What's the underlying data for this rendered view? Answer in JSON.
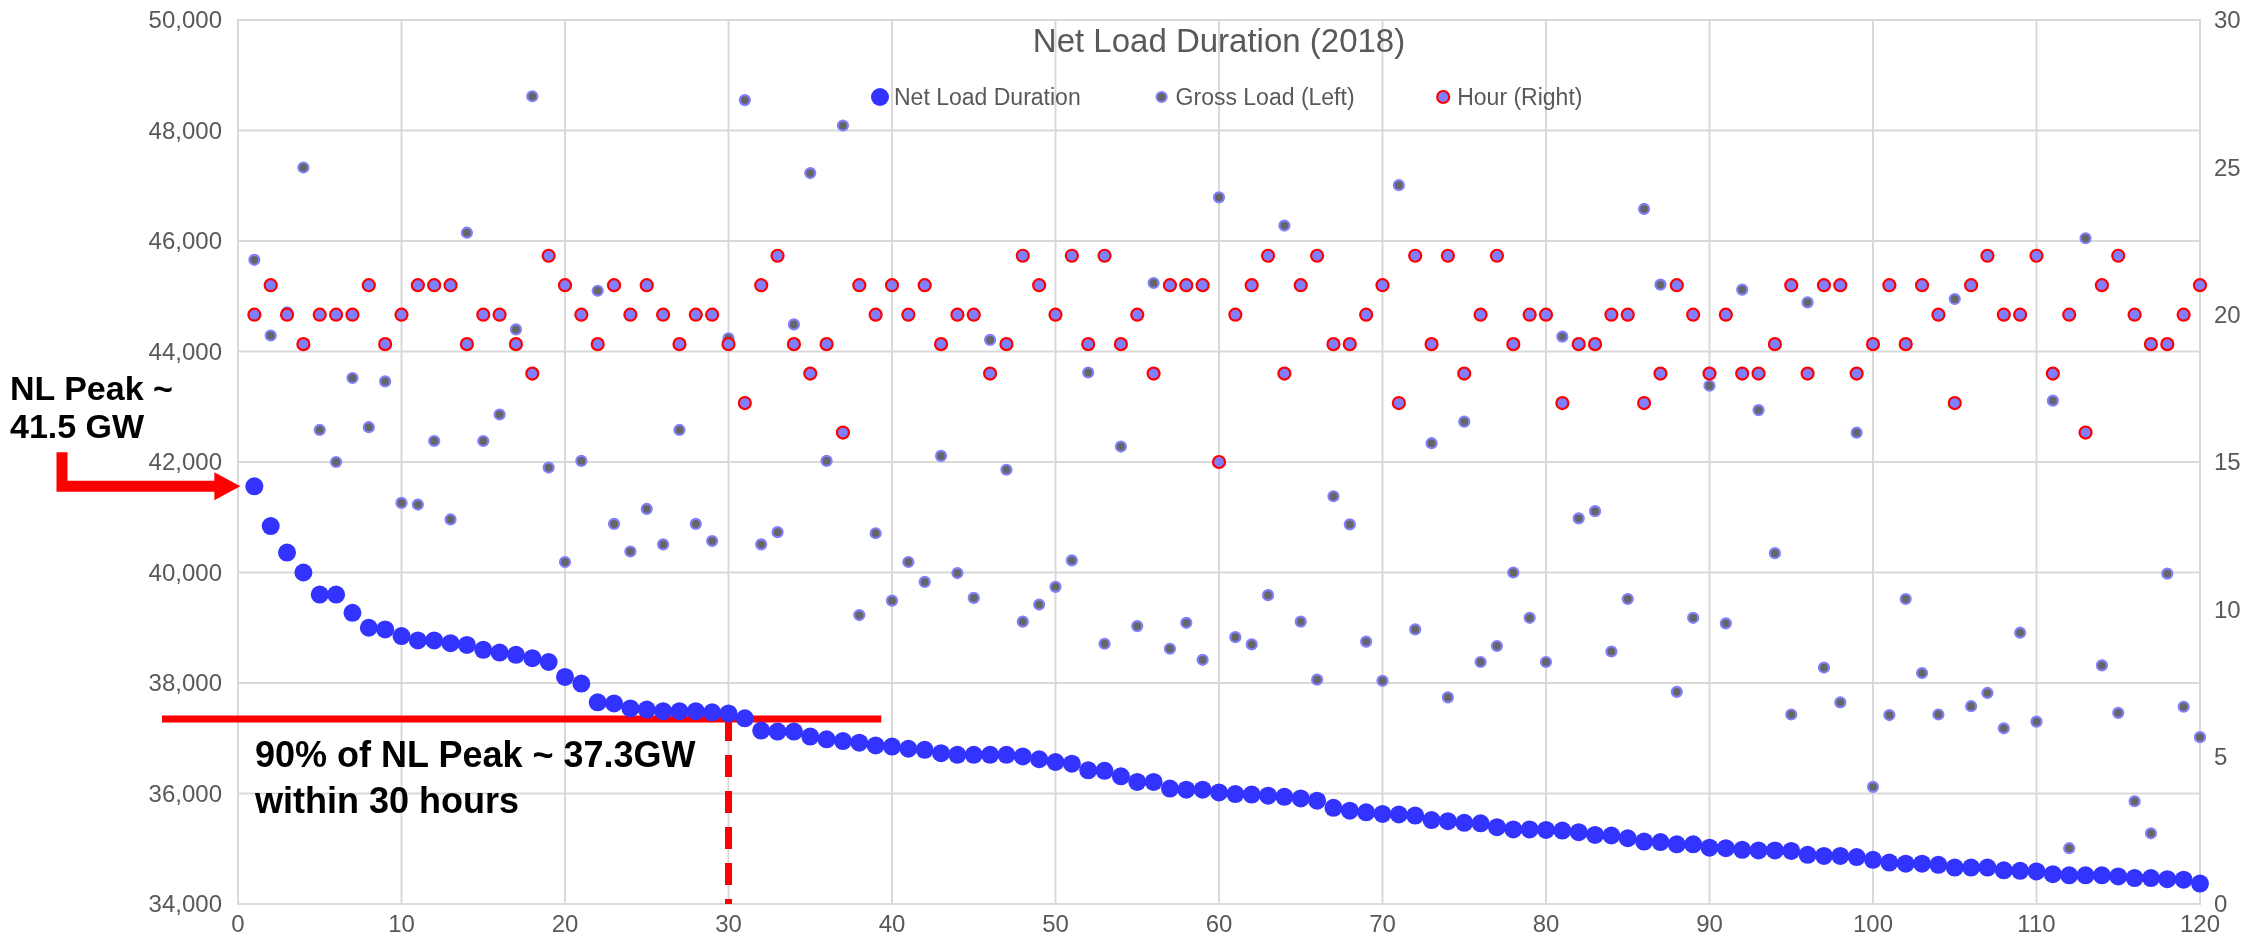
{
  "chart_data": {
    "type": "scatter",
    "title": "Net Load Duration (2018)",
    "x": [
      1,
      2,
      3,
      4,
      5,
      6,
      7,
      8,
      9,
      10,
      11,
      12,
      13,
      14,
      15,
      16,
      17,
      18,
      19,
      20,
      21,
      22,
      23,
      24,
      25,
      26,
      27,
      28,
      29,
      30,
      31,
      32,
      33,
      34,
      35,
      36,
      37,
      38,
      39,
      40,
      41,
      42,
      43,
      44,
      45,
      46,
      47,
      48,
      49,
      50,
      51,
      52,
      53,
      54,
      55,
      56,
      57,
      58,
      59,
      60,
      61,
      62,
      63,
      64,
      65,
      66,
      67,
      68,
      69,
      70,
      71,
      72,
      73,
      74,
      75,
      76,
      77,
      78,
      79,
      80,
      81,
      82,
      83,
      84,
      85,
      86,
      87,
      88,
      89,
      90,
      91,
      92,
      93,
      94,
      95,
      96,
      97,
      98,
      99,
      100,
      101,
      102,
      103,
      104,
      105,
      106,
      107,
      108,
      109,
      110,
      111,
      112,
      113,
      114,
      115,
      116,
      117,
      118,
      119,
      120
    ],
    "series": [
      {
        "name": "Net Load Duration",
        "color": "#3333ff",
        "values": [
          41560,
          40840,
          40360,
          40000,
          39600,
          39600,
          39270,
          39000,
          38970,
          38850,
          38770,
          38770,
          38720,
          38690,
          38600,
          38550,
          38510,
          38450,
          38380,
          38110,
          37990,
          37650,
          37630,
          37540,
          37520,
          37490,
          37490,
          37490,
          37470,
          37450,
          37360,
          37140,
          37120,
          37120,
          37030,
          36980,
          36950,
          36920,
          36870,
          36850,
          36810,
          36790,
          36730,
          36700,
          36700,
          36700,
          36700,
          36670,
          36620,
          36570,
          36540,
          36420,
          36410,
          36310,
          36210,
          36210,
          36090,
          36070,
          36070,
          36020,
          35990,
          35980,
          35960,
          35940,
          35910,
          35870,
          35740,
          35690,
          35660,
          35630,
          35620,
          35600,
          35520,
          35500,
          35470,
          35460,
          35390,
          35350,
          35350,
          35340,
          35330,
          35300,
          35250,
          35240,
          35190,
          35130,
          35120,
          35080,
          35080,
          35020,
          35010,
          34980,
          34970,
          34970,
          34960,
          34890,
          34870,
          34870,
          34850,
          34800,
          34750,
          34730,
          34730,
          34710,
          34660,
          34660,
          34660,
          34610,
          34600,
          34590,
          34540,
          34520,
          34520,
          34520,
          34500,
          34470,
          34470,
          34450,
          34440,
          34370
        ]
      },
      {
        "name": "Gross Load (Left)",
        "color": "#666666",
        "values": [
          45660,
          44290,
          44710,
          47330,
          42580,
          42000,
          43520,
          42630,
          43460,
          41260,
          41230,
          42380,
          40960,
          46150,
          42380,
          42860,
          44400,
          48620,
          41900,
          40190,
          42020,
          45100,
          40880,
          40380,
          41150,
          40510,
          42580,
          40880,
          40570,
          44240,
          48550,
          40510,
          40730,
          44490,
          47230,
          42020,
          48090,
          39230,
          40710,
          39490,
          40190,
          39830,
          42110,
          39990,
          39540,
          44210,
          41860,
          39110,
          39420,
          39740,
          40220,
          43620,
          38710,
          42280,
          39030,
          45240,
          38620,
          39090,
          38420,
          46790,
          38830,
          38700,
          39590,
          46280,
          39110,
          38060,
          41380,
          40870,
          38750,
          38040,
          47010,
          38970,
          42340,
          37740,
          42730,
          38380,
          38670,
          40000,
          39180,
          38380,
          44270,
          40980,
          41110,
          38570,
          39520,
          46580,
          45210,
          37840,
          39180,
          43380,
          39080,
          45120,
          42940,
          40350,
          37430,
          44890,
          38280,
          37650,
          42530,
          36120,
          37420,
          39520,
          38180,
          37430,
          44950,
          37580,
          37820,
          37180,
          38910,
          37300,
          43110,
          35010,
          46050,
          38320,
          37460,
          35860,
          35280,
          39980,
          37570,
          37020
        ]
      },
      {
        "name": "Hour (Right)",
        "color": "#ff0000",
        "axis": "y2",
        "values": [
          20,
          21,
          20,
          19,
          20,
          20,
          20,
          21,
          19,
          20,
          21,
          21,
          21,
          19,
          20,
          20,
          19,
          18,
          22,
          21,
          20,
          19,
          21,
          20,
          21,
          20,
          19,
          20,
          20,
          19,
          17,
          21,
          22,
          19,
          18,
          19,
          16,
          21,
          20,
          21,
          20,
          21,
          19,
          20,
          20,
          18,
          19,
          22,
          21,
          20,
          22,
          19,
          22,
          19,
          20,
          18,
          21,
          21,
          21,
          15,
          20,
          21,
          22,
          18,
          21,
          22,
          19,
          19,
          20,
          21,
          17,
          22,
          19,
          22,
          18,
          20,
          22,
          19,
          20,
          20,
          17,
          19,
          19,
          20,
          20,
          17,
          18,
          21,
          20,
          18,
          20,
          18,
          18,
          19,
          21,
          18,
          21,
          21,
          18,
          19,
          21,
          19,
          21,
          20,
          17,
          21,
          22,
          20,
          20,
          22,
          18,
          20,
          16,
          21,
          22,
          20,
          19,
          19,
          20,
          21
        ]
      }
    ],
    "xlim": [
      0,
      120
    ],
    "xticks": [
      0,
      10,
      20,
      30,
      40,
      50,
      60,
      70,
      80,
      90,
      100,
      110,
      120
    ],
    "ylim": [
      34000,
      50000
    ],
    "yticks": [
      {
        "value": 34000,
        "label": "34,000"
      },
      {
        "value": 36000,
        "label": "36,000"
      },
      {
        "value": 38000,
        "label": "38,000"
      },
      {
        "value": 40000,
        "label": "40,000"
      },
      {
        "value": 42000,
        "label": "42,000"
      },
      {
        "value": 44000,
        "label": "44,000"
      },
      {
        "value": 46000,
        "label": "46,000"
      },
      {
        "value": 48000,
        "label": "48,000"
      },
      {
        "value": 50000,
        "label": "50,000"
      }
    ],
    "y2lim": [
      0,
      30
    ],
    "y2ticks": [
      0,
      5,
      10,
      15,
      20,
      25,
      30
    ],
    "grid": true,
    "legend": "top",
    "marker": "circle",
    "ref_lines": [
      {
        "axis": "y",
        "value": 37350,
        "label": "90% of NL Peak ~ 37.3GW within 30 hours",
        "color": "#ff0000",
        "line_style": "solid"
      },
      {
        "axis": "x",
        "value": 30,
        "color": "#ff0000",
        "line_style": "dashed"
      }
    ],
    "annotations": [
      "NL Peak ~ 41.5 GW"
    ]
  }
}
